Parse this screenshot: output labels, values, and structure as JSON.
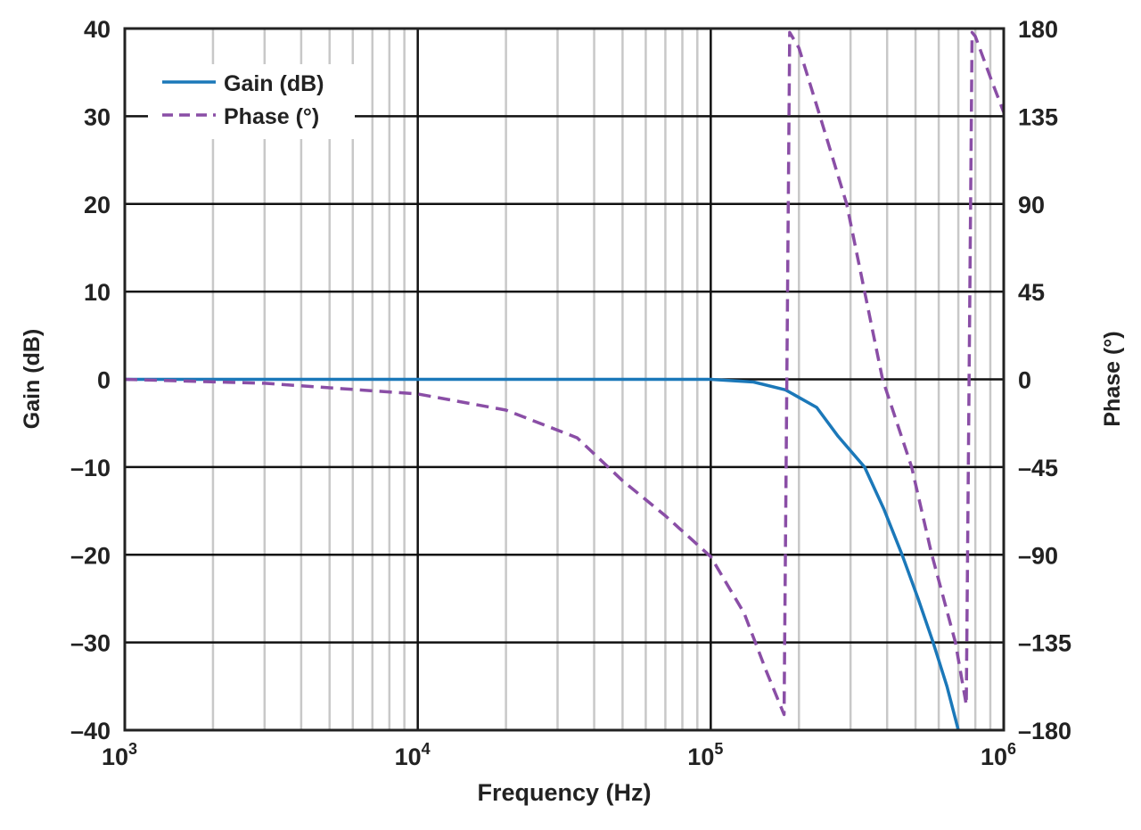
{
  "chart_data": {
    "type": "line",
    "title": "",
    "xlabel": "Frequency (Hz)",
    "ylabel": "Gain (dB)",
    "y2label": "Phase (°)",
    "xscale": "log",
    "xlim": [
      1000,
      1000000
    ],
    "ylim": [
      -40,
      40
    ],
    "y2lim": [
      -180,
      180
    ],
    "x_ticks": [
      {
        "base": "10",
        "exp": "3"
      },
      {
        "base": "10",
        "exp": "4"
      },
      {
        "base": "10",
        "exp": "5"
      },
      {
        "base": "10",
        "exp": "6"
      }
    ],
    "y_ticks": [
      "40",
      "30",
      "20",
      "10",
      "0",
      "–10",
      "–20",
      "–30",
      "–40"
    ],
    "y2_ticks": [
      "180",
      "135",
      "90",
      "45",
      "0",
      "–45",
      "–90",
      "–135",
      "–180"
    ],
    "grid": true,
    "legend_position": "top-left",
    "colors": {
      "gain": "#1b78b9",
      "phase": "#8a4ea6",
      "grid_major": "#111111",
      "grid_minor": "#c8c8c8"
    },
    "series": [
      {
        "name": "Gain (dB)",
        "axis": "left",
        "style": "solid",
        "x": [
          1000,
          10000,
          50000,
          100000,
          140000,
          180000,
          230000,
          272000,
          335000,
          390000,
          450000,
          510000,
          574000,
          640000,
          700000
        ],
        "y": [
          0,
          0,
          0,
          0,
          -0.3,
          -1.2,
          -3.2,
          -6.5,
          -10,
          -14.8,
          -20,
          -25,
          -30,
          -35,
          -40
        ]
      },
      {
        "name": "Phase (°)",
        "axis": "right",
        "style": "dashed",
        "x": [
          1000,
          3000,
          10000,
          20000,
          35000,
          50000,
          70000,
          100000,
          130000,
          155000,
          178000,
          186000,
          200000,
          236000,
          291000,
          386000,
          485000,
          566000,
          684000,
          745000,
          780000,
          800000,
          900000,
          1000000
        ],
        "y": [
          0,
          -2,
          -7.5,
          -15.8,
          -30,
          -52,
          -70,
          -91,
          -120,
          -150,
          -172,
          178,
          170,
          135,
          90,
          0,
          -45,
          -89,
          -135,
          -167,
          178,
          176,
          155,
          137
        ]
      }
    ]
  }
}
